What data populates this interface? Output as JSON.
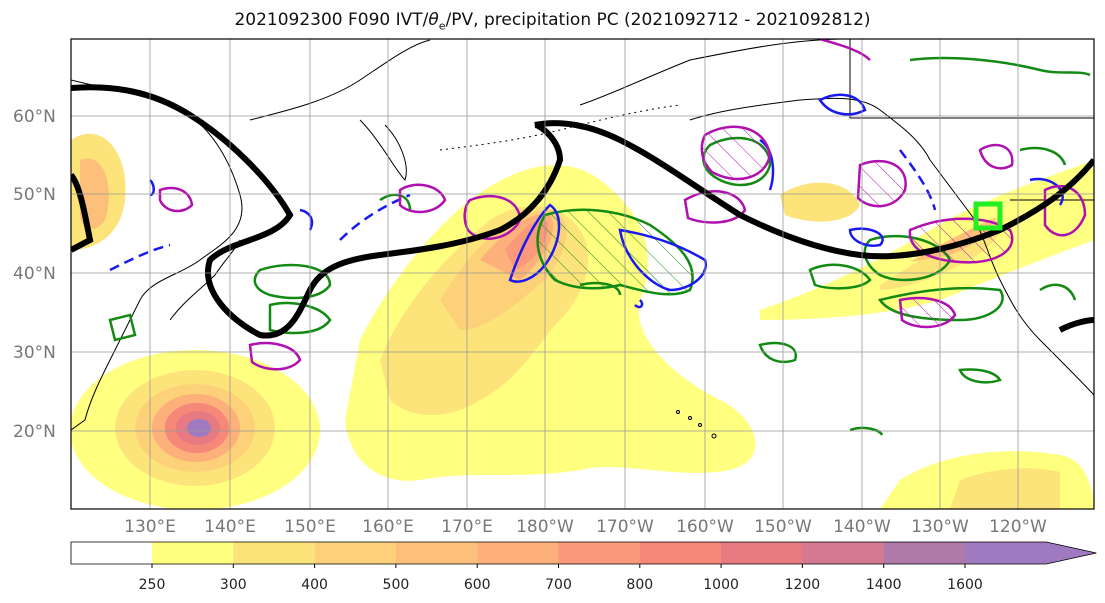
{
  "title": "2021092300 F090 IVT/θe/PV, precipitation PC (2021092712 - 2021092812)",
  "title_parts": {
    "prefix": "2021092300 F090 IVT/",
    "theta": "θ",
    "theta_sub": "e",
    "suffix": "/PV, precipitation PC (2021092712 - 2021092812)"
  },
  "lat_labels": [
    "60°N",
    "50°N",
    "40°N",
    "30°N",
    "20°N"
  ],
  "lon_labels": [
    "130°E",
    "140°E",
    "150°E",
    "160°E",
    "170°E",
    "180°W",
    "170°W",
    "160°W",
    "150°W",
    "140°W",
    "130°W",
    "120°W"
  ],
  "colorbar": {
    "ticks": [
      "250",
      "300",
      "400",
      "500",
      "600",
      "700",
      "800",
      "1000",
      "1200",
      "1400",
      "1600"
    ],
    "colors": [
      "#ffff80",
      "#fde47a",
      "#fdd07a",
      "#fdc07a",
      "#fdb07a",
      "#fb9a7a",
      "#f58878",
      "#e77a80",
      "#d47a90",
      "#b07aa8",
      "#a07ac0"
    ]
  },
  "colors": {
    "ivt_low": "#ffff80",
    "ivt_high": "#a07ac0",
    "pv_contour": "#000000",
    "theta_e_contour": "#1a1aee",
    "precip_contour": "#138a13",
    "secondary_contour": "#b010b0",
    "box_marker": "#22ee22"
  }
}
